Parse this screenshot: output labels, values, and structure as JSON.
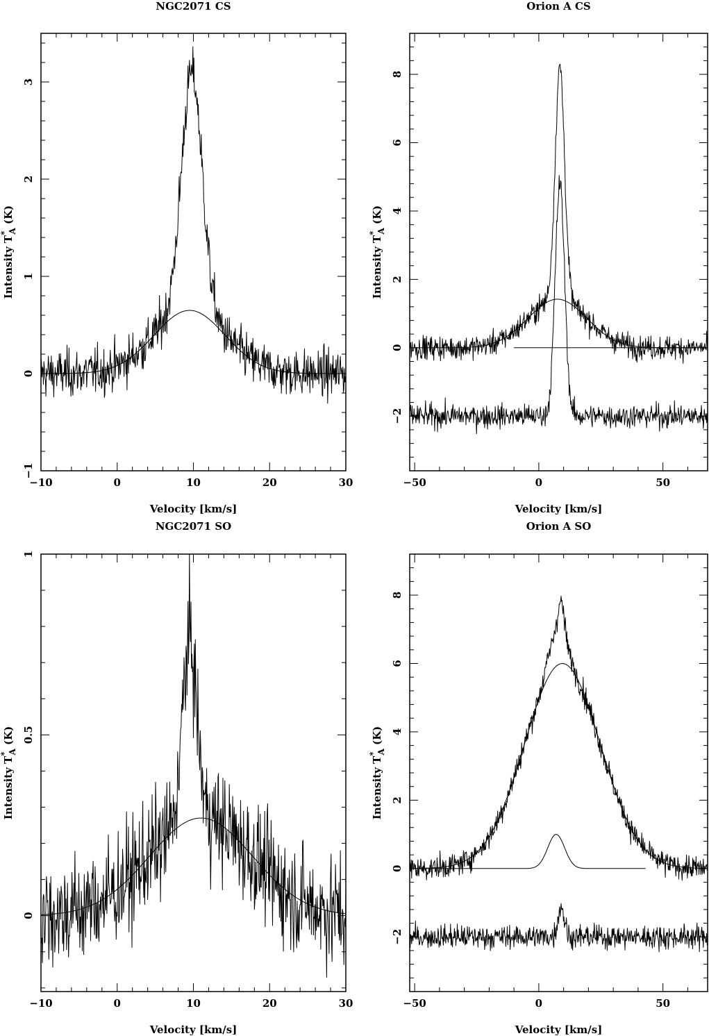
{
  "chart_data": [
    {
      "type": "line",
      "title": "NGC2071 CS",
      "xlabel": "Velocity  [km/s]",
      "ylabel": {
        "prefix": "Intensity T",
        "sup": "*",
        "sub": "A",
        "suffix": " (K)"
      },
      "xlim": [
        -10,
        30
      ],
      "ylim": [
        -1,
        3.5
      ],
      "xticks": [
        -10,
        0,
        10,
        20,
        30
      ],
      "yticks": [
        -1,
        0,
        1,
        2,
        3
      ],
      "grid": false,
      "series": [
        {
          "kind": "spectrum",
          "noise": 0.12,
          "offset": 0,
          "components": [
            {
              "amp": 0.65,
              "center": 9.5,
              "fwhm": 11.0
            },
            {
              "amp": 2.45,
              "center": 9.8,
              "fwhm": 3.2
            }
          ]
        },
        {
          "kind": "fit",
          "offset": 0,
          "components": [
            {
              "amp": 0.65,
              "center": 9.5,
              "fwhm": 11.0
            }
          ]
        }
      ]
    },
    {
      "type": "line",
      "title": "Orion A CS",
      "xlabel": "Velocity  [km/s]",
      "ylabel": {
        "prefix": "Intensity T",
        "sup": "*",
        "sub": "A",
        "suffix": " (K)"
      },
      "xlim": [
        -52,
        68
      ],
      "ylim": [
        -3.6,
        9.2
      ],
      "xticks": [
        -50,
        0,
        50
      ],
      "yticks": [
        -2,
        0,
        2,
        4,
        6,
        8
      ],
      "grid": false,
      "series": [
        {
          "kind": "spectrum",
          "noise": 0.17,
          "offset": 0,
          "components": [
            {
              "amp": 1.42,
              "center": 7.5,
              "fwhm": 28
            },
            {
              "amp": 6.8,
              "center": 8.5,
              "fwhm": 4.5
            }
          ]
        },
        {
          "kind": "fit",
          "offset": 0,
          "components": [
            {
              "amp": 1.42,
              "center": 7.5,
              "fwhm": 28
            }
          ]
        },
        {
          "kind": "fit",
          "offset": 0,
          "xrange": [
            -10,
            68
          ],
          "components": []
        },
        {
          "kind": "spectrum",
          "noise": 0.17,
          "offset": -2,
          "components": [
            {
              "amp": 6.8,
              "center": 8.5,
              "fwhm": 4.5
            }
          ]
        }
      ]
    },
    {
      "type": "line",
      "title": "NGC2071 SO",
      "xlabel": "Velocity  [km/s]",
      "ylabel": {
        "prefix": "Intensity T",
        "sup": "*",
        "sub": "A",
        "suffix": " (K)"
      },
      "xlim": [
        -10,
        30
      ],
      "ylim": [
        -0.21,
        1.0
      ],
      "xticks": [
        -10,
        0,
        10,
        20,
        30
      ],
      "yticks": [
        0,
        0.5,
        1
      ],
      "grid": false,
      "series": [
        {
          "kind": "spectrum",
          "noise": 0.075,
          "offset": 0,
          "components": [
            {
              "amp": 0.27,
              "center": 11.0,
              "fwhm": 16.0
            },
            {
              "amp": 0.5,
              "center": 9.5,
              "fwhm": 2.2
            }
          ]
        },
        {
          "kind": "fit",
          "offset": 0,
          "components": [
            {
              "amp": 0.27,
              "center": 11.0,
              "fwhm": 16.0
            }
          ]
        }
      ]
    },
    {
      "type": "line",
      "title": "Orion A SO",
      "xlabel": "Velocity  [km/s]",
      "ylabel": {
        "prefix": "Intensity T",
        "sup": "*",
        "sub": "A",
        "suffix": " (K)"
      },
      "xlim": [
        -52,
        68
      ],
      "ylim": [
        -3.6,
        9.2
      ],
      "xticks": [
        -50,
        0,
        50
      ],
      "yticks": [
        -2,
        0,
        2,
        4,
        6,
        8
      ],
      "grid": false,
      "series": [
        {
          "kind": "spectrum",
          "noise": 0.17,
          "offset": 0,
          "components": [
            {
              "amp": 6.0,
              "center": 9.5,
              "fwhm": 36
            },
            {
              "amp": 1.0,
              "center": 7.5,
              "fwhm": 8
            },
            {
              "amp": 0.9,
              "center": 9.0,
              "fwhm": 3
            }
          ]
        },
        {
          "kind": "fit",
          "offset": 0,
          "components": [
            {
              "amp": 6.0,
              "center": 9.5,
              "fwhm": 36
            }
          ]
        },
        {
          "kind": "fit",
          "offset": 0,
          "xrange": [
            -52,
            43
          ],
          "components": [
            {
              "amp": 1.0,
              "center": 7.0,
              "fwhm": 8
            }
          ]
        },
        {
          "kind": "spectrum",
          "noise": 0.17,
          "offset": -2,
          "components": [
            {
              "amp": 0.9,
              "center": 9.0,
              "fwhm": 3
            }
          ]
        }
      ]
    }
  ]
}
